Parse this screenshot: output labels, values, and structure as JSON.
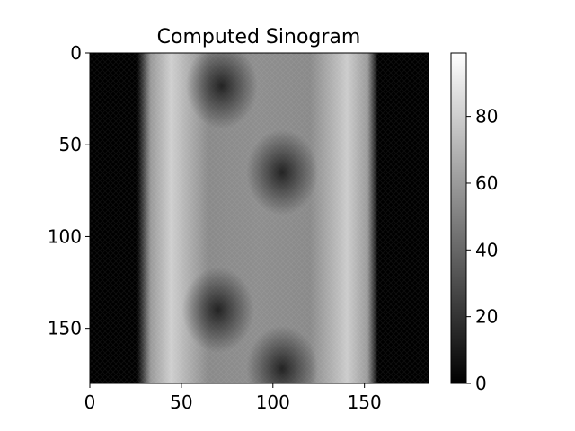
{
  "chart_data": {
    "type": "heatmap",
    "title": "Computed Sinogram",
    "colormap": "gray",
    "x_ticks": [
      0,
      50,
      100,
      150
    ],
    "y_ticks": [
      0,
      50,
      100,
      150
    ],
    "xlim": [
      0,
      185
    ],
    "ylim": [
      180,
      0
    ],
    "colorbar": {
      "ticks": [
        0,
        20,
        40,
        60,
        80
      ],
      "range": [
        0,
        99
      ]
    },
    "grid": false,
    "values_by_column_band": [
      {
        "x_range": [
          0,
          27
        ],
        "level": 0
      },
      {
        "x_range": [
          27,
          45
        ],
        "level": 85
      },
      {
        "x_range": [
          45,
          135
        ],
        "level": 60
      },
      {
        "x_range": [
          135,
          155
        ],
        "level": 85
      },
      {
        "x_range": [
          155,
          185
        ],
        "level": 0
      }
    ],
    "dark_regions": [
      {
        "x": 72,
        "y": 18,
        "level": 15
      },
      {
        "x": 105,
        "y": 65,
        "level": 35
      },
      {
        "x": 70,
        "y": 140,
        "level": 25
      },
      {
        "x": 105,
        "y": 172,
        "level": 20
      }
    ]
  }
}
